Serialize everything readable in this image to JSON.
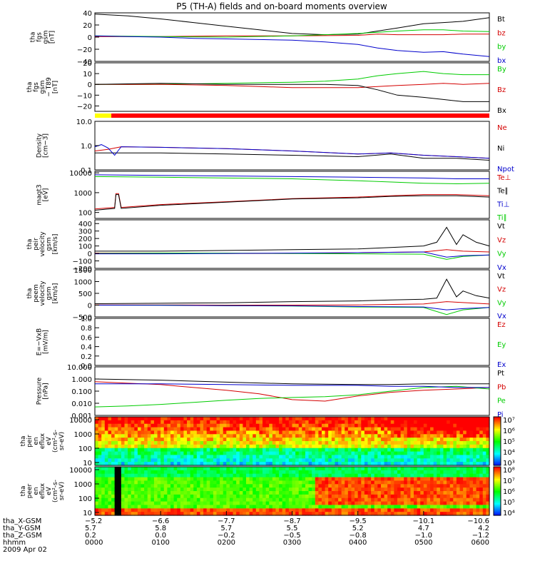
{
  "title": "P5 (TH-A) fields and on-board moments overview",
  "chart_data": {
    "type": "line",
    "x_range_hours": [
      0,
      6
    ],
    "panels": [
      {
        "id": "fgs-gsm",
        "ylabel": [
          "tha",
          "fgs",
          "gsm",
          "[nT]"
        ],
        "yticks": [
          "40",
          "20",
          "0",
          "−20",
          "−40"
        ],
        "ylim": [
          -40,
          40
        ],
        "log": false,
        "series": [
          {
            "name": "Bt",
            "color": "#000000",
            "x": [
              0,
              0.5,
              1,
              1.5,
              2,
              2.5,
              3,
              3.5,
              4,
              4.3,
              4.6,
              5,
              5.3,
              5.6,
              6
            ],
            "y": [
              38,
              35,
              30,
              24,
              18,
              12,
              6,
              4,
              5,
              10,
              15,
              22,
              24,
              26,
              32
            ]
          },
          {
            "name": "bz",
            "color": "#d40000",
            "x": [
              0,
              1,
              2,
              3,
              4,
              4.3,
              4.6,
              5,
              5.3,
              5.6,
              6
            ],
            "y": [
              1,
              1,
              2,
              2,
              3,
              5,
              4,
              4,
              4,
              5,
              5
            ]
          },
          {
            "name": "by",
            "color": "#00cc00",
            "x": [
              0,
              1,
              2,
              3,
              3.5,
              4,
              4.3,
              4.6,
              5,
              5.3,
              5.6,
              6
            ],
            "y": [
              2,
              1,
              0,
              2,
              4,
              6,
              8,
              10,
              12,
              12,
              10,
              9
            ]
          },
          {
            "name": "bx",
            "color": "#0000cc",
            "x": [
              0,
              0.5,
              1,
              1.5,
              2,
              2.5,
              3,
              3.5,
              4,
              4.3,
              4.6,
              5,
              5.3,
              5.6,
              6
            ],
            "y": [
              2,
              1,
              0,
              -2,
              -3,
              -4,
              -5,
              -8,
              -12,
              -18,
              -22,
              -25,
              -24,
              -28,
              -32
            ]
          }
        ]
      },
      {
        "id": "fgs-mfa",
        "ylabel": [
          "tha",
          "fgs",
          "gsm",
          "− T89",
          "[nT]"
        ],
        "yticks": [
          "20",
          "10",
          "0",
          "−10",
          "−20"
        ],
        "ylim": [
          -25,
          20
        ],
        "log": false,
        "series": [
          {
            "name": "By",
            "color": "#00cc00",
            "x": [
              0,
              1,
              2,
              3,
              3.5,
              4,
              4.3,
              4.6,
              5,
              5.3,
              5.6,
              6
            ],
            "y": [
              0,
              0,
              1,
              2,
              3,
              5,
              8,
              10,
              12,
              10,
              9,
              9
            ]
          },
          {
            "name": "Bz",
            "color": "#d40000",
            "x": [
              0,
              1,
              2,
              2.5,
              3,
              3.5,
              4,
              4.3,
              4.6,
              5,
              5.3,
              5.6,
              6
            ],
            "y": [
              0,
              0,
              -1,
              -2,
              -3,
              -3,
              -3,
              -2,
              -1,
              0,
              1,
              0,
              1
            ]
          },
          {
            "name": "Bx",
            "color": "#000000",
            "x": [
              0,
              1,
              2,
              3,
              3.5,
              4,
              4.3,
              4.6,
              5,
              5.3,
              5.6,
              6
            ],
            "y": [
              0,
              1,
              0,
              0,
              0,
              -1,
              -5,
              -10,
              -12,
              -14,
              -16,
              -16
            ]
          }
        ]
      },
      {
        "id": "density",
        "ylabel": [
          "Density",
          "[cm−3]"
        ],
        "yticks": [
          "10.0",
          "1.0",
          "0.1"
        ],
        "ylim": [
          0.1,
          10
        ],
        "log": true,
        "series": [
          {
            "name": "Ne",
            "color": "#d40000",
            "x": [
              0,
              0.2,
              0.4,
              1,
              2,
              3,
              4,
              4.5,
              5,
              5.5,
              6
            ],
            "y": [
              0.6,
              0.7,
              0.9,
              0.85,
              0.75,
              0.6,
              0.45,
              0.5,
              0.4,
              0.35,
              0.3
            ]
          },
          {
            "name": "Ni",
            "color": "#000000",
            "x": [
              0,
              0.4,
              1,
              2,
              3,
              4,
              4.5,
              5,
              5.5,
              6
            ],
            "y": [
              0.5,
              0.5,
              0.5,
              0.45,
              0.4,
              0.35,
              0.45,
              0.3,
              0.3,
              0.25
            ]
          },
          {
            "name": "Npot",
            "color": "#0000cc",
            "x": [
              0,
              0.1,
              0.2,
              0.3,
              0.4,
              1,
              2,
              3,
              4,
              4.5,
              5,
              5.5,
              6
            ],
            "y": [
              0.9,
              1.1,
              0.8,
              0.4,
              0.9,
              0.85,
              0.75,
              0.6,
              0.45,
              0.5,
              0.4,
              0.35,
              0.3
            ]
          }
        ]
      },
      {
        "id": "temperature",
        "ylabel": [
          "magt3",
          "[eV]"
        ],
        "yticks": [
          "10000",
          "1000",
          "100"
        ],
        "ylim": [
          50,
          12000
        ],
        "log": true,
        "series": [
          {
            "name": "Te⊥",
            "color": "#d40000",
            "x": [
              0,
              0.3,
              0.32,
              0.36,
              0.4,
              1,
              2,
              3,
              4,
              4.5,
              5,
              5.5,
              6
            ],
            "y": [
              150,
              180,
              900,
              900,
              180,
              250,
              350,
              500,
              600,
              700,
              800,
              800,
              700
            ]
          },
          {
            "name": "Te∥",
            "color": "#000000",
            "x": [
              0,
              0.3,
              0.32,
              0.36,
              0.4,
              1,
              2,
              3,
              4,
              4.5,
              5,
              5.5,
              6
            ],
            "y": [
              130,
              160,
              800,
              800,
              160,
              230,
              330,
              480,
              550,
              650,
              700,
              700,
              600
            ]
          },
          {
            "name": "Ti⊥",
            "color": "#0000cc",
            "x": [
              0,
              1,
              2,
              3,
              4,
              5,
              5.5,
              6
            ],
            "y": [
              8000,
              7500,
              7000,
              6500,
              6000,
              5500,
              5000,
              5000
            ]
          },
          {
            "name": "Ti∥",
            "color": "#00cc00",
            "x": [
              0,
              1,
              2,
              3,
              4,
              5,
              5.5,
              6
            ],
            "y": [
              6500,
              6000,
              5500,
              5000,
              4000,
              3000,
              2800,
              3000
            ]
          }
        ]
      },
      {
        "id": "peir-velocity",
        "ylabel": [
          "tha",
          "peir",
          "velocity",
          "gsm",
          "[km/s]"
        ],
        "yticks": [
          "400",
          "300",
          "200",
          "100",
          "0",
          "−100",
          "−200"
        ],
        "ylim": [
          -200,
          450
        ],
        "log": false,
        "series": [
          {
            "name": "Vt",
            "color": "#000000",
            "x": [
              0,
              1,
              2,
              3,
              4,
              4.5,
              5,
              5.2,
              5.35,
              5.5,
              5.6,
              5.8,
              6
            ],
            "y": [
              30,
              30,
              40,
              50,
              60,
              80,
              100,
              150,
              350,
              120,
              250,
              150,
              100
            ]
          },
          {
            "name": "Vz",
            "color": "#d40000",
            "x": [
              0,
              1,
              2,
              3,
              4,
              5,
              5.35,
              5.6,
              6
            ],
            "y": [
              5,
              5,
              0,
              0,
              10,
              20,
              50,
              30,
              20
            ]
          },
          {
            "name": "Vy",
            "color": "#00cc00",
            "x": [
              0,
              1,
              2,
              3,
              4,
              5,
              5.35,
              5.6,
              6
            ],
            "y": [
              0,
              5,
              5,
              0,
              -5,
              -10,
              -80,
              -40,
              -20
            ]
          },
          {
            "name": "Vx",
            "color": "#0000cc",
            "x": [
              0,
              1,
              2,
              3,
              4,
              5,
              5.35,
              5.6,
              6
            ],
            "y": [
              -5,
              -5,
              0,
              5,
              10,
              20,
              -50,
              -30,
              -20
            ]
          }
        ]
      },
      {
        "id": "peem-velocity",
        "ylabel": [
          "tha",
          "peem",
          "velocity",
          "gsm",
          "[km/s]"
        ],
        "yticks": [
          "1500",
          "1000",
          "500",
          "0",
          "−500"
        ],
        "ylim": [
          -500,
          1500
        ],
        "log": false,
        "series": [
          {
            "name": "Vt",
            "color": "#000000",
            "x": [
              0,
              1,
              2,
              3,
              4,
              4.5,
              5,
              5.2,
              5.35,
              5.5,
              5.6,
              5.8,
              6
            ],
            "y": [
              60,
              80,
              100,
              150,
              180,
              220,
              250,
              300,
              1100,
              350,
              600,
              400,
              300
            ]
          },
          {
            "name": "Vz",
            "color": "#d40000",
            "x": [
              0,
              1,
              2,
              3,
              4,
              5,
              5.35,
              6
            ],
            "y": [
              10,
              10,
              0,
              0,
              10,
              50,
              150,
              50
            ]
          },
          {
            "name": "Vy",
            "color": "#00cc00",
            "x": [
              0,
              1,
              2,
              3,
              4,
              5,
              5.35,
              5.6,
              6
            ],
            "y": [
              0,
              0,
              -20,
              -40,
              -80,
              -100,
              -400,
              -200,
              -100
            ]
          },
          {
            "name": "Vx",
            "color": "#0000cc",
            "x": [
              0,
              1,
              2,
              3,
              4,
              5,
              5.35,
              5.6,
              6
            ],
            "y": [
              0,
              -10,
              -20,
              -30,
              -60,
              -80,
              -200,
              -150,
              -100
            ]
          }
        ]
      },
      {
        "id": "efield",
        "ylabel": [
          "E=−VxB",
          "[mV/m]"
        ],
        "yticks": [
          "1.0",
          "0.8",
          "0.6",
          "0.4",
          "0.2",
          "0.0"
        ],
        "ylim": [
          0,
          1
        ],
        "log": false,
        "series": [
          {
            "name": "Ez",
            "color": "#d40000",
            "x": [],
            "y": []
          },
          {
            "name": "Ey",
            "color": "#00cc00",
            "x": [],
            "y": []
          },
          {
            "name": "Ex",
            "color": "#0000cc",
            "x": [],
            "y": []
          }
        ]
      },
      {
        "id": "pressure",
        "ylabel": [
          "Pressure",
          "[nPa]"
        ],
        "yticks": [
          "10.000",
          "1.000",
          "0.100",
          "0.010",
          "0.001"
        ],
        "ylim": [
          0.001,
          10
        ],
        "log": true,
        "series": [
          {
            "name": "Pt",
            "color": "#000000",
            "x": [
              0,
              1,
              2,
              3,
              4,
              4.5,
              5,
              5.5,
              6
            ],
            "y": [
              1.0,
              0.8,
              0.55,
              0.4,
              0.35,
              0.35,
              0.4,
              0.4,
              0.4
            ]
          },
          {
            "name": "Pb",
            "color": "#d40000",
            "x": [
              0,
              0.5,
              1,
              1.5,
              2,
              2.5,
              3,
              3.5,
              4,
              4.5,
              5,
              5.5,
              6
            ],
            "y": [
              0.6,
              0.45,
              0.35,
              0.2,
              0.12,
              0.06,
              0.02,
              0.015,
              0.04,
              0.08,
              0.12,
              0.15,
              0.2
            ]
          },
          {
            "name": "Pe",
            "color": "#00cc00",
            "x": [
              0,
              0.5,
              1,
              1.5,
              2,
              2.5,
              3,
              3.5,
              4,
              4.5,
              5,
              5.5,
              6
            ],
            "y": [
              0.005,
              0.006,
              0.008,
              0.012,
              0.018,
              0.025,
              0.03,
              0.035,
              0.05,
              0.1,
              0.2,
              0.25,
              0.15
            ]
          },
          {
            "name": "Pi",
            "color": "#0000cc",
            "x": [
              0,
              1,
              2,
              3,
              4,
              4.5,
              5,
              5.5,
              6
            ],
            "y": [
              0.4,
              0.4,
              0.35,
              0.3,
              0.3,
              0.25,
              0.25,
              0.2,
              0.2
            ]
          }
        ]
      },
      {
        "id": "peir-spec",
        "type": "heatmap",
        "ylabel": [
          "tha",
          "peir",
          "en",
          "eflux",
          "eV",
          "(cm²-s-",
          "sr-eV)"
        ],
        "yticks": [
          "10000",
          "1000",
          "100",
          "10"
        ],
        "cbar_ticks": [
          "10⁷",
          "10⁶",
          "10⁵",
          "10⁴",
          "10³"
        ]
      },
      {
        "id": "peer-spec",
        "type": "heatmap",
        "ylabel": [
          "tha",
          "peer",
          "en",
          "eflux",
          "eV",
          "(cm²-s-",
          "sr-eV)"
        ],
        "yticks": [
          "10000",
          "1000",
          "100",
          "10"
        ],
        "cbar_ticks": [
          "10⁸",
          "10⁷",
          "10⁶",
          "10⁵",
          "10⁴"
        ]
      }
    ],
    "flag_bar": [
      {
        "from": 0,
        "to": 0.25,
        "color": "#ffff00"
      },
      {
        "from": 0.25,
        "to": 6,
        "color": "#ff0000"
      }
    ],
    "xaxis": {
      "row_labels": [
        "tha_X-GSM",
        "tha_Y-GSM",
        "tha_Z-GSM",
        "hhmm",
        "2009 Apr 02"
      ],
      "columns": [
        {
          "x": 0,
          "X": "−5.2",
          "Y": "5.7",
          "Z": "0.2",
          "hhmm": "0000"
        },
        {
          "x": 1,
          "X": "−6.6",
          "Y": "5.8",
          "Z": "0.0",
          "hhmm": "0100"
        },
        {
          "x": 2,
          "X": "−7.7",
          "Y": "5.7",
          "Z": "−0.2",
          "hhmm": "0200"
        },
        {
          "x": 3,
          "X": "−8.7",
          "Y": "5.5",
          "Z": "−0.5",
          "hhmm": "0300"
        },
        {
          "x": 4,
          "X": "−9.5",
          "Y": "5.2",
          "Z": "−0.8",
          "hhmm": "0400"
        },
        {
          "x": 5,
          "X": "−10.1",
          "Y": "4.7",
          "Z": "−1.0",
          "hhmm": "0500"
        },
        {
          "x": 6,
          "X": "−10.6",
          "Y": "4.2",
          "Z": "−1.2",
          "hhmm": "0600"
        }
      ]
    }
  }
}
